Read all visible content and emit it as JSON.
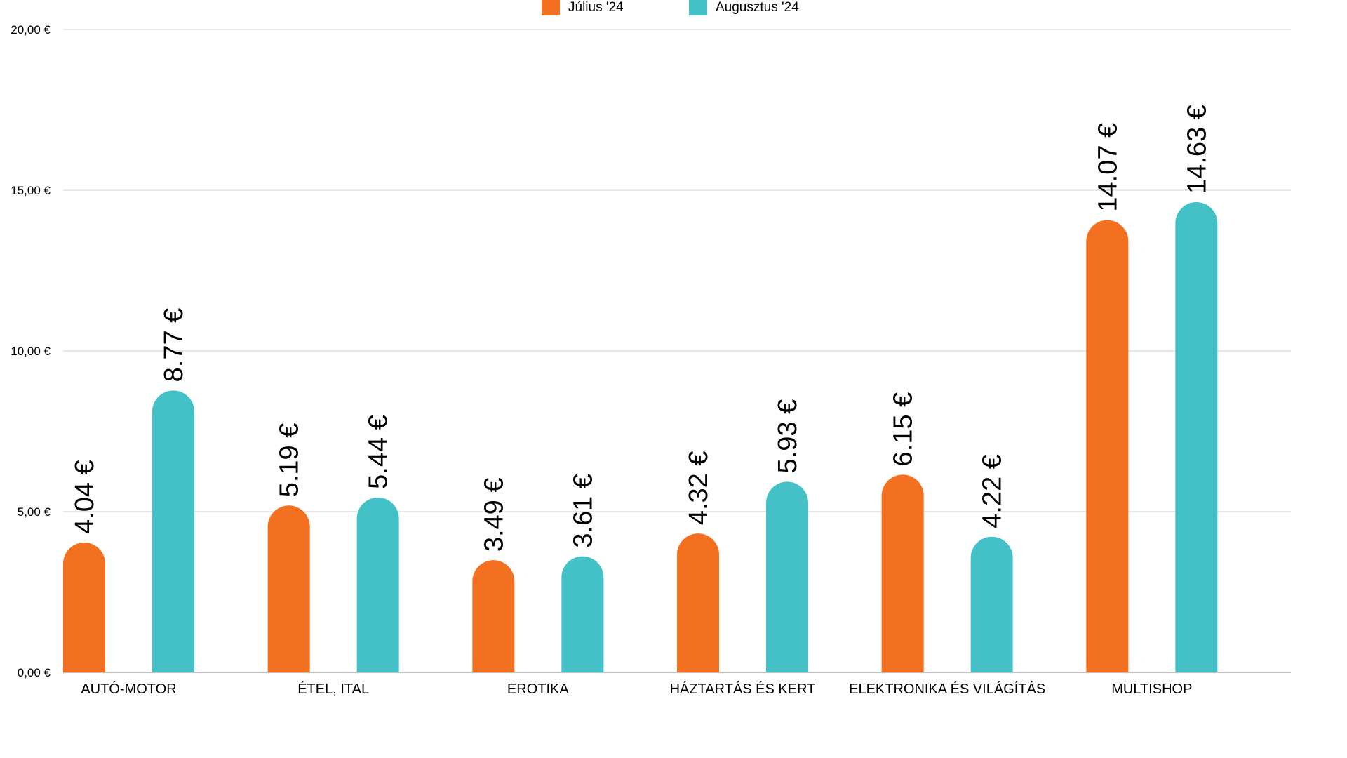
{
  "chart_data": {
    "type": "bar",
    "title": "",
    "xlabel": "",
    "ylabel": "",
    "ylim": [
      0,
      20
    ],
    "yticks": [
      0,
      5,
      10,
      15,
      20
    ],
    "ytick_labels": [
      "0,00 €",
      "5,00 €",
      "10,00 €",
      "15,00 €",
      "20,00 €"
    ],
    "grid": true,
    "legend_position": "top-center",
    "categories": [
      "AUTÓ-MOTOR",
      "ÉTEL, ITAL",
      "EROTIKA",
      "HÁZTARTÁS ÉS KERT",
      "ELEKTRONIKA ÉS VILÁGÍTÁS",
      "MULTISHOP"
    ],
    "series": [
      {
        "name": "Július '24",
        "color": "#f37021",
        "values": [
          4.04,
          5.19,
          3.49,
          4.32,
          6.15,
          14.07
        ],
        "labels": [
          "4.04 €",
          "5.19 €",
          "3.49 €",
          "4.32 €",
          "6.15 €",
          "14.07 €"
        ]
      },
      {
        "name": "Augusztus '24",
        "color": "#43c1c7",
        "values": [
          8.77,
          5.44,
          3.61,
          5.93,
          4.22,
          14.63
        ],
        "labels": [
          "8.77 €",
          "5.44 €",
          "3.61 €",
          "5.93 €",
          "4.22 €",
          "14.63 €"
        ]
      }
    ]
  }
}
